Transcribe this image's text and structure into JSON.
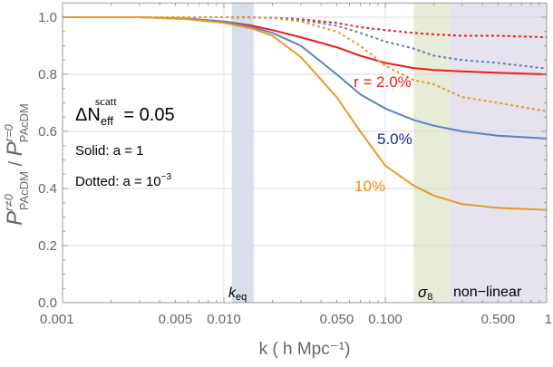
{
  "chart_data": {
    "type": "line",
    "xscale": "log",
    "xlim": [
      0.001,
      1
    ],
    "ylim": [
      0,
      1.05
    ],
    "grid": true,
    "xlabel": "k ( h Mpc⁻¹)",
    "ylabel": {
      "num": "P",
      "num_sup": "r≠0",
      "num_sub": "PAcDM",
      "sep": " / ",
      "den": "P",
      "den_sup": "r=0",
      "den_sub": "PAcDM"
    },
    "xticks": [
      {
        "v": 0.001,
        "label": "0.001"
      },
      {
        "v": 0.005,
        "label": "0.005"
      },
      {
        "v": 0.01,
        "label": "0.010"
      },
      {
        "v": 0.05,
        "label": "0.050"
      },
      {
        "v": 0.1,
        "label": "0.100"
      },
      {
        "v": 0.5,
        "label": "0.500"
      },
      {
        "v": 1,
        "label": "1"
      }
    ],
    "yticks": [
      {
        "v": 0,
        "label": "0.0"
      },
      {
        "v": 0.2,
        "label": "0.2"
      },
      {
        "v": 0.4,
        "label": "0.4"
      },
      {
        "v": 0.6,
        "label": "0.6"
      },
      {
        "v": 0.8,
        "label": "0.8"
      },
      {
        "v": 1.0,
        "label": "1.0"
      }
    ],
    "bands": [
      {
        "name": "keq",
        "label": "k",
        "label_sub": "eq",
        "range": [
          0.0112,
          0.0153
        ],
        "color": "#d6dfea"
      },
      {
        "name": "sigma8",
        "label": "σ",
        "label_sub": "8",
        "range": [
          0.15,
          0.25
        ],
        "color": "#e6ecd6"
      },
      {
        "name": "non-linear",
        "label": "non−linear",
        "range": [
          0.25,
          1
        ],
        "color": "#e6e3ee"
      }
    ],
    "annotations": {
      "dneff": {
        "main": "ΔN",
        "sub": "eff",
        "sup": "scatt",
        "rest": " = 0.05"
      },
      "solid": "Solid: a = 1",
      "dotted": "Dotted: a = 10",
      "dotted_exp": "−3"
    },
    "series": [
      {
        "label": "r = 2.0%",
        "r": "2.0%",
        "style": "solid",
        "color": "#ee1c1c",
        "x": [
          0.001,
          0.003,
          0.006,
          0.01,
          0.015,
          0.02,
          0.03,
          0.05,
          0.07,
          0.1,
          0.15,
          0.2,
          0.3,
          0.5,
          1
        ],
        "y": [
          1.0,
          1.0,
          0.995,
          0.985,
          0.97,
          0.955,
          0.93,
          0.895,
          0.865,
          0.84,
          0.822,
          0.815,
          0.81,
          0.805,
          0.8
        ]
      },
      {
        "label": "5.0%",
        "r": "5.0%",
        "style": "solid",
        "color": "#5f82b8",
        "x": [
          0.001,
          0.003,
          0.006,
          0.01,
          0.015,
          0.02,
          0.03,
          0.05,
          0.07,
          0.1,
          0.15,
          0.2,
          0.3,
          0.5,
          1
        ],
        "y": [
          1.0,
          1.0,
          0.995,
          0.985,
          0.965,
          0.945,
          0.9,
          0.8,
          0.73,
          0.68,
          0.64,
          0.62,
          0.6,
          0.585,
          0.575
        ]
      },
      {
        "label": "10%",
        "r": "10%",
        "style": "solid",
        "color": "#e29c2a",
        "x": [
          0.001,
          0.003,
          0.006,
          0.01,
          0.015,
          0.02,
          0.03,
          0.05,
          0.07,
          0.1,
          0.15,
          0.2,
          0.3,
          0.5,
          1
        ],
        "y": [
          1.0,
          1.0,
          0.993,
          0.98,
          0.96,
          0.935,
          0.86,
          0.72,
          0.6,
          0.48,
          0.41,
          0.375,
          0.345,
          0.332,
          0.325
        ]
      },
      {
        "r": "2.0%",
        "style": "dotted",
        "color": "#ee1c1c",
        "x": [
          0.001,
          0.01,
          0.02,
          0.03,
          0.05,
          0.07,
          0.1,
          0.15,
          0.2,
          0.3,
          0.5,
          1
        ],
        "y": [
          1.0,
          1.0,
          0.998,
          0.993,
          0.98,
          0.965,
          0.955,
          0.945,
          0.94,
          0.935,
          0.935,
          0.93
        ]
      },
      {
        "r": "5.0%",
        "style": "dotted",
        "color": "#5f82b8",
        "x": [
          0.001,
          0.01,
          0.02,
          0.03,
          0.05,
          0.07,
          0.1,
          0.15,
          0.2,
          0.3,
          0.5,
          1
        ],
        "y": [
          1.0,
          1.0,
          0.998,
          0.99,
          0.97,
          0.945,
          0.915,
          0.89,
          0.865,
          0.85,
          0.84,
          0.82
        ]
      },
      {
        "r": "10%",
        "style": "dotted",
        "color": "#e29c2a",
        "x": [
          0.001,
          0.01,
          0.02,
          0.03,
          0.05,
          0.07,
          0.1,
          0.15,
          0.2,
          0.3,
          0.5,
          1
        ],
        "y": [
          1.0,
          1.0,
          0.997,
          0.985,
          0.95,
          0.9,
          0.83,
          0.78,
          0.765,
          0.72,
          0.7,
          0.67
        ]
      }
    ]
  }
}
